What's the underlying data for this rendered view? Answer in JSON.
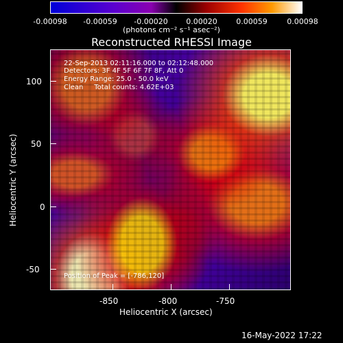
{
  "colorbar": {
    "ticks": [
      "-0.00098",
      "-0.00059",
      "-0.00020",
      "0.00020",
      "0.00059",
      "0.00098"
    ],
    "units": "(photons cm⁻² s⁻¹ asec⁻²)"
  },
  "title": "Reconstructed RHESSI Image",
  "info": {
    "line1": "22-Sep-2013 02:11:16.000 to 02:12:48.000",
    "line2": "Detectors: 3F 4F 5F 6F 7F 8F, Att 0",
    "line3": "Energy Range: 25.0 - 50.0 keV",
    "line4": "Clean     Total counts: 4.62E+03",
    "peak": "Position of Peak = [-786,120]"
  },
  "axes": {
    "x_label": "Heliocentric X (arcsec)",
    "y_label": "Heliocentric Y (arcsec)",
    "x_ticks": [
      "-850",
      "-800",
      "-750"
    ],
    "y_ticks": [
      "100",
      "50",
      "0",
      "-50"
    ]
  },
  "footer": "16-May-2022 17:22"
}
